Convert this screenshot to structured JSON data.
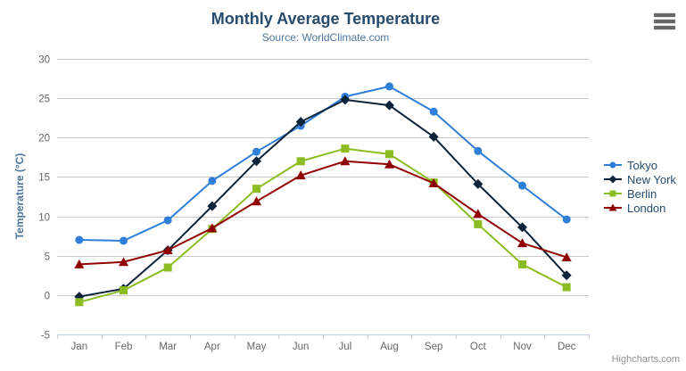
{
  "credits": {
    "label": "Highcharts.com"
  },
  "export_menu": {
    "icon": "hamburger-icon"
  },
  "chart_data": {
    "type": "line",
    "title": "Monthly Average Temperature",
    "subtitle": "Source: WorldClimate.com",
    "categories": [
      "Jan",
      "Feb",
      "Mar",
      "Apr",
      "May",
      "Jun",
      "Jul",
      "Aug",
      "Sep",
      "Oct",
      "Nov",
      "Dec"
    ],
    "series": [
      {
        "name": "Tokyo",
        "color": "#2f7ed8",
        "marker": "circle",
        "values": [
          7.0,
          6.9,
          9.5,
          14.5,
          18.2,
          21.5,
          25.2,
          26.5,
          23.3,
          18.3,
          13.9,
          9.6
        ]
      },
      {
        "name": "New York",
        "color": "#0d233a",
        "marker": "diamond",
        "values": [
          -0.2,
          0.8,
          5.7,
          11.3,
          17.0,
          22.0,
          24.8,
          24.1,
          20.1,
          14.1,
          8.6,
          2.5
        ]
      },
      {
        "name": "Berlin",
        "color": "#8bbc21",
        "marker": "square",
        "values": [
          -0.9,
          0.6,
          3.5,
          8.4,
          13.5,
          17.0,
          18.6,
          17.9,
          14.3,
          9.0,
          3.9,
          1.0
        ]
      },
      {
        "name": "London",
        "color": "#910000",
        "marker": "triangle",
        "values": [
          3.9,
          4.2,
          5.7,
          8.5,
          11.9,
          15.2,
          17.0,
          16.6,
          14.2,
          10.3,
          6.6,
          4.8
        ]
      }
    ],
    "xlabel": "",
    "ylabel": "Temperature (°C)",
    "yAxis": {
      "title": "Temperature (°C)",
      "min": -5,
      "max": 30,
      "tickInterval": 5
    },
    "ylim": [
      -5,
      30
    ],
    "grid": true,
    "legend_position": "right",
    "colors": {
      "grid_line": "#c8c8c8",
      "axis_line": "#c0d0e0",
      "axis_label": "#666666",
      "title_text": "#274b6d",
      "subtitle_text": "#4d759e",
      "legend_text": "#274b6d",
      "credits_text": "#909090"
    }
  }
}
